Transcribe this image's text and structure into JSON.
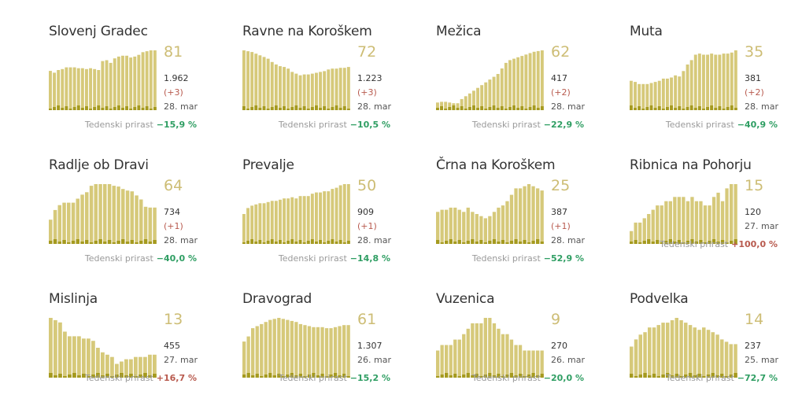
{
  "weekly_label": "Tedenski prirast",
  "colors": {
    "bar": "#d6c97a",
    "bar_new": "#a59a1f",
    "big_value": "#cdbd75",
    "positive_change": "#2f9e63",
    "negative_change": "#b85a4e"
  },
  "chart_data": [
    {
      "type": "bar",
      "title": "Slovenj Gradec",
      "value": "81",
      "total": "1.962",
      "delta": "(+3)",
      "date": "28. mar",
      "weekly_change": "−15,9 %",
      "trend": "down",
      "values": [
        44,
        42,
        45,
        46,
        48,
        48,
        48,
        47,
        47,
        46,
        47,
        46,
        45,
        55,
        56,
        53,
        58,
        60,
        61,
        61,
        59,
        60,
        62,
        65,
        66,
        67,
        67
      ]
    },
    {
      "type": "bar",
      "title": "Ravne na Koroškem",
      "value": "72",
      "total": "1.223",
      "delta": "(+3)",
      "date": "28. mar",
      "weekly_change": "−10,5 %",
      "trend": "down",
      "values": [
        72,
        71,
        70,
        68,
        66,
        64,
        62,
        58,
        55,
        53,
        52,
        50,
        46,
        44,
        42,
        43,
        43,
        44,
        45,
        46,
        47,
        49,
        50,
        50,
        51,
        51,
        52
      ]
    },
    {
      "type": "bar",
      "title": "Mežica",
      "value": "62",
      "total": "417",
      "delta": "(+2)",
      "date": "28. mar",
      "weekly_change": "−22,9 %",
      "trend": "down",
      "values": [
        11,
        12,
        12,
        11,
        10,
        10,
        16,
        20,
        24,
        28,
        32,
        36,
        40,
        44,
        48,
        52,
        60,
        68,
        72,
        74,
        76,
        78,
        80,
        82,
        84,
        85,
        86
      ]
    },
    {
      "type": "bar",
      "title": "Muta",
      "value": "35",
      "total": "381",
      "delta": "(+2)",
      "date": "28. mar",
      "weekly_change": "−40,9 %",
      "trend": "down",
      "values": [
        27,
        26,
        24,
        24,
        24,
        25,
        26,
        27,
        29,
        29,
        30,
        32,
        31,
        36,
        42,
        46,
        51,
        52,
        51,
        51,
        52,
        51,
        51,
        52,
        52,
        53,
        55
      ]
    },
    {
      "type": "bar",
      "title": "Radlje ob Dravi",
      "value": "64",
      "total": "734",
      "delta": "(+1)",
      "date": "28. mar",
      "weekly_change": "−40,0 %",
      "trend": "down",
      "values": [
        30,
        42,
        48,
        51,
        51,
        51,
        56,
        61,
        64,
        72,
        74,
        74,
        74,
        74,
        72,
        71,
        68,
        66,
        65,
        60,
        55,
        46,
        45,
        45
      ]
    },
    {
      "type": "bar",
      "title": "Prevalje",
      "value": "50",
      "total": "909",
      "delta": "(+1)",
      "date": "28. mar",
      "weekly_change": "−14,8 %",
      "trend": "down",
      "values": [
        25,
        30,
        32,
        33,
        34,
        34,
        35,
        36,
        36,
        37,
        38,
        38,
        39,
        38,
        40,
        40,
        40,
        42,
        43,
        43,
        44,
        44,
        46,
        47,
        49,
        50,
        50
      ]
    },
    {
      "type": "bar",
      "title": "Črna na Koroškem",
      "value": "25",
      "total": "387",
      "delta": "(+1)",
      "date": "28. mar",
      "weekly_change": "−52,9 %",
      "trend": "down",
      "values": [
        15,
        16,
        16,
        17,
        17,
        16,
        15,
        17,
        15,
        14,
        13,
        12,
        13,
        15,
        17,
        18,
        20,
        23,
        26,
        26,
        27,
        28,
        27,
        26,
        25
      ]
    },
    {
      "type": "bar",
      "title": "Ribnica na Pohorju",
      "value": "15",
      "total": "120",
      "date": "27. mar",
      "weekly_change": "+100,0 %",
      "trend": "up",
      "values": [
        3,
        5,
        5,
        6,
        7,
        8,
        9,
        9,
        10,
        10,
        11,
        11,
        11,
        10,
        11,
        10,
        10,
        9,
        9,
        11,
        12,
        10,
        13,
        14,
        14
      ]
    },
    {
      "type": "bar",
      "title": "Mislinja",
      "value": "13",
      "total": "455",
      "date": "27. mar",
      "weekly_change": "+16,7 %",
      "trend": "up",
      "values": [
        26,
        25,
        24,
        20,
        18,
        18,
        18,
        17,
        17,
        16,
        13,
        11,
        10,
        9,
        6,
        7,
        8,
        8,
        9,
        9,
        9,
        10,
        10
      ]
    },
    {
      "type": "bar",
      "title": "Dravograd",
      "value": "61",
      "total": "1.307",
      "date": "26. mar",
      "weekly_change": "−15,2 %",
      "trend": "down",
      "values": [
        35,
        40,
        48,
        50,
        52,
        54,
        56,
        57,
        58,
        57,
        56,
        55,
        54,
        52,
        51,
        50,
        49,
        49,
        49,
        48,
        48,
        49,
        50,
        51,
        51
      ]
    },
    {
      "type": "bar",
      "title": "Vuzenica",
      "value": "9",
      "total": "270",
      "date": "26. mar",
      "weekly_change": "−20,0 %",
      "trend": "down",
      "values": [
        5,
        6,
        6,
        6,
        7,
        7,
        8,
        9,
        10,
        10,
        10,
        11,
        11,
        10,
        9,
        8,
        8,
        7,
        6,
        6,
        5,
        5,
        5,
        5,
        5
      ]
    },
    {
      "type": "bar",
      "title": "Podvelka",
      "value": "14",
      "total": "237",
      "date": "25. mar",
      "weekly_change": "−72,7 %",
      "trend": "down",
      "values": [
        13,
        16,
        18,
        19,
        21,
        21,
        22,
        23,
        23,
        24,
        25,
        24,
        23,
        22,
        21,
        20,
        21,
        20,
        19,
        18,
        16,
        15,
        14,
        14
      ]
    }
  ]
}
